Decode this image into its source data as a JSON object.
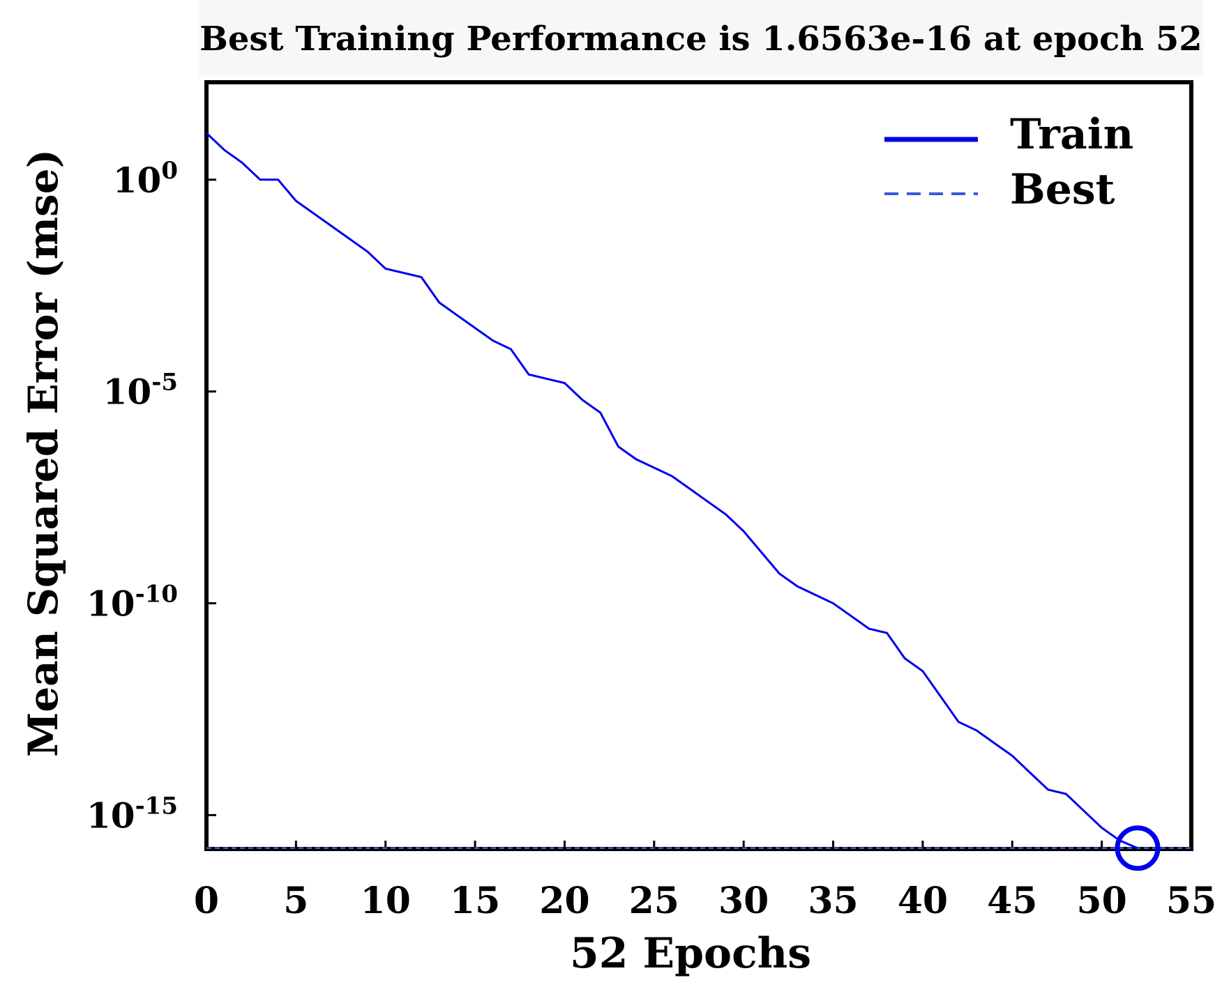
{
  "chart_data": {
    "type": "line",
    "title": "Best Training Performance is 1.6563e-16 at epoch 52",
    "xlabel": "52 Epochs",
    "ylabel": "Mean Squared Error (mse)",
    "scale_y": "log",
    "xlim": [
      0,
      55
    ],
    "ylim_log10": [
      -15.8,
      2.3
    ],
    "x_ticks": [
      0,
      5,
      10,
      15,
      20,
      25,
      30,
      35,
      40,
      45,
      50,
      55
    ],
    "x_tick_labels": [
      "0",
      "5",
      "10",
      "15",
      "20",
      "25",
      "30",
      "35",
      "40",
      "45",
      "50",
      "55"
    ],
    "y_ticks_log10": [
      0,
      -5,
      -10,
      -15
    ],
    "y_tick_labels": [
      {
        "base": "10",
        "exp": "0"
      },
      {
        "base": "10",
        "exp": "-5"
      },
      {
        "base": "10",
        "exp": "-10"
      },
      {
        "base": "10",
        "exp": "-15"
      }
    ],
    "series": [
      {
        "name": "Train",
        "color": "#0000ee",
        "style": "solid",
        "x": [
          0,
          1,
          2,
          3,
          4,
          5,
          6,
          7,
          8,
          9,
          10,
          11,
          12,
          13,
          14,
          15,
          16,
          17,
          18,
          19,
          20,
          21,
          22,
          23,
          24,
          25,
          26,
          27,
          28,
          29,
          30,
          31,
          32,
          33,
          34,
          35,
          36,
          37,
          38,
          39,
          40,
          41,
          42,
          43,
          44,
          45,
          46,
          47,
          48,
          49,
          50,
          51,
          52
        ],
        "log10_y": [
          1.1,
          0.7,
          0.4,
          0.0,
          0.0,
          -0.5,
          -0.8,
          -1.1,
          -1.4,
          -1.7,
          -2.1,
          -2.2,
          -2.3,
          -2.9,
          -3.2,
          -3.5,
          -3.8,
          -4.0,
          -4.6,
          -4.7,
          -4.8,
          -5.2,
          -5.5,
          -6.3,
          -6.6,
          -6.8,
          -7.0,
          -7.3,
          -7.6,
          -7.9,
          -8.3,
          -8.8,
          -9.3,
          -9.6,
          -9.8,
          -10.0,
          -10.3,
          -10.6,
          -10.7,
          -11.3,
          -11.6,
          -12.2,
          -12.8,
          -13.0,
          -13.3,
          -13.6,
          -14.0,
          -14.4,
          -14.5,
          -14.9,
          -15.3,
          -15.6,
          -15.78
        ]
      },
      {
        "name": "Best",
        "color": "#3a5ad9",
        "style": "dashed",
        "y_value": "1.6563e-16",
        "log10_y": -15.78
      }
    ],
    "best_point": {
      "x": 52,
      "y": "1.6563e-16",
      "log10_y": -15.78,
      "marker": "circle"
    },
    "legend": {
      "position": "top-right",
      "entries": [
        {
          "label": "Train",
          "style": "solid"
        },
        {
          "label": "Best",
          "style": "dashed"
        }
      ]
    },
    "grid": false
  }
}
